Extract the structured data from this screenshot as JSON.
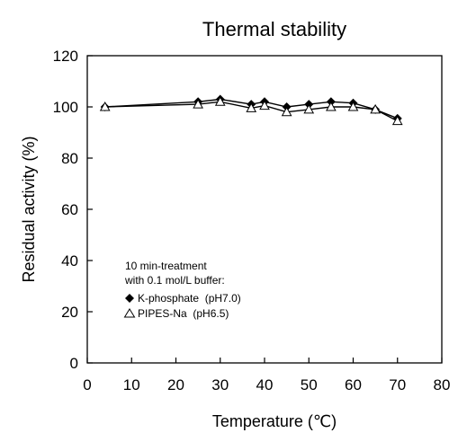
{
  "chart_data": {
    "type": "line",
    "title": "Thermal stability",
    "xlabel": "Temperature (℃)",
    "ylabel": "Residual activity (%)",
    "xlim": [
      0,
      80
    ],
    "ylim": [
      0,
      120
    ],
    "xticks": [
      0,
      10,
      20,
      30,
      40,
      50,
      60,
      70,
      80
    ],
    "yticks": [
      0,
      20,
      40,
      60,
      80,
      100,
      120
    ],
    "grid": false,
    "legend_position": "bottom-left",
    "legend_header": [
      "10 min-treatment",
      "with 0.1  mol/L buffer:"
    ],
    "series": [
      {
        "name": "K-phosphate  (pH7.0)",
        "marker": "filled-diamond",
        "color": "#000000",
        "x": [
          4,
          25,
          30,
          37,
          40,
          45,
          50,
          55,
          60,
          65,
          70
        ],
        "y": [
          100,
          102,
          103,
          101,
          102,
          100,
          101,
          102,
          101.5,
          99,
          95.5
        ]
      },
      {
        "name": "PIPES-Na  (pH6.5)",
        "marker": "open-triangle",
        "color": "#000000",
        "x": [
          4,
          25,
          30,
          37,
          40,
          45,
          50,
          55,
          60,
          65,
          70
        ],
        "y": [
          100,
          101,
          102,
          99.5,
          100.5,
          98,
          99,
          100,
          100,
          99,
          94.5
        ]
      }
    ]
  }
}
